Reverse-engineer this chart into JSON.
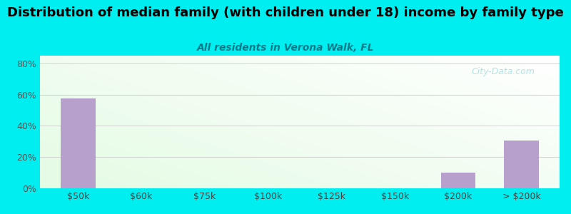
{
  "title": "Distribution of median family (with children under 18) income by family type",
  "subtitle": "All residents in Verona Walk, FL",
  "categories": [
    "$50k",
    "$60k",
    "$75k",
    "$100k",
    "$125k",
    "$150k",
    "$200k",
    "> $200k"
  ],
  "values": [
    57.5,
    0,
    0,
    0,
    0,
    0,
    10.0,
    30.5
  ],
  "bar_color": "#b8a0cc",
  "bar_width": 0.55,
  "ylim": [
    0,
    85
  ],
  "yticks": [
    0,
    20,
    40,
    60,
    80
  ],
  "ytick_labels": [
    "0%",
    "20%",
    "40%",
    "60%",
    "80%"
  ],
  "bg_outer": "#00eef0",
  "title_fontsize": 13,
  "subtitle_fontsize": 10,
  "subtitle_color": "#007b8a",
  "title_color": "#000000",
  "watermark": "City-Data.com"
}
